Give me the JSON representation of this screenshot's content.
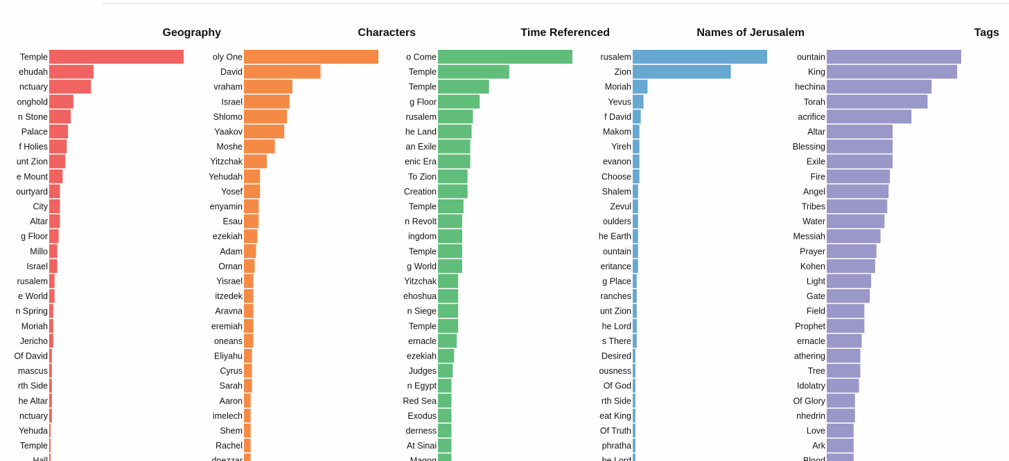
{
  "chart_data": [
    {
      "type": "bar",
      "orientation": "horizontal",
      "title": "Geography",
      "color": "#f06360",
      "categories": [
        "Temple",
        "ehudah",
        "nctuary",
        "onghold",
        "n Stone",
        "Palace",
        "f Holies",
        "unt Zion",
        "e Mount",
        "ourtyard",
        "City",
        "Altar",
        "g Floor",
        "Millo",
        "Israel",
        "rusalem",
        "e World",
        "n Spring",
        "Moriah",
        "Jericho",
        "Of David",
        "mascus",
        "rth Side",
        "he Altar",
        "nctuary",
        "Yehuda",
        "Temple",
        "Hall"
      ],
      "values": [
        100,
        33,
        31,
        18,
        16,
        14,
        13,
        12,
        10,
        8,
        8,
        8,
        7,
        6,
        6,
        4,
        4,
        3,
        3,
        3,
        2,
        2,
        2,
        2,
        2,
        1,
        1,
        1
      ]
    },
    {
      "type": "bar",
      "orientation": "horizontal",
      "title": "Characters",
      "color": "#f48a45",
      "categories": [
        "oly One",
        "David",
        "vraham",
        "Israel",
        "Shlomo",
        "Yaakov",
        "Moshe",
        "Yitzchak",
        "Yehudah",
        "Yosef",
        "enyamin",
        "Esau",
        "ezekiah",
        "Adam",
        "Ornan",
        "Yisrael",
        "itzedek",
        "Aravna",
        "eremiah",
        "oneans",
        "Eliyahu",
        "Cyrus",
        "Sarah",
        "Aaron",
        "imelech",
        "Shem",
        "Rachel",
        "dnezzar"
      ],
      "values": [
        100,
        57,
        36,
        34,
        32,
        30,
        23,
        17,
        12,
        12,
        11,
        11,
        10,
        9,
        8,
        7,
        7,
        7,
        7,
        7,
        6,
        6,
        6,
        5,
        5,
        5,
        5,
        5
      ]
    },
    {
      "type": "bar",
      "orientation": "horizontal",
      "title": "Time Referenced",
      "color": "#61bd7a",
      "categories": [
        "o Come",
        "Temple",
        "Temple",
        "g Floor",
        "rusalem",
        "he Land",
        "an Exile",
        "enic Era",
        "To Zion",
        "Creation",
        "Temple",
        "n Revolt",
        "ingdom",
        "Temple",
        "g World",
        "Yitzchak",
        "ehoshua",
        "n Siege",
        "Temple",
        "ernacle",
        "ezekiah",
        "Judges",
        "n Egypt",
        "Red Sea",
        "Exodus",
        "derness",
        "At Sinai",
        "Magog"
      ],
      "values": [
        100,
        53,
        38,
        31,
        26,
        25,
        24,
        24,
        22,
        22,
        19,
        18,
        18,
        18,
        18,
        15,
        15,
        15,
        15,
        14,
        12,
        11,
        10,
        10,
        10,
        10,
        10,
        10
      ]
    },
    {
      "type": "bar",
      "orientation": "horizontal",
      "title": "Names of Jerusalem",
      "color": "#67a8d0",
      "categories": [
        "rusalem",
        "Zion",
        "Moriah",
        "Yevus",
        "f David",
        "Makom",
        "Yireh",
        "evanon",
        "Choose",
        "Shalem",
        "Zevul",
        "oulders",
        "he Earth",
        "ountain",
        "eritance",
        "g Place",
        "ranches",
        "unt Zion",
        "he Lord",
        "s There",
        "Desired",
        "ousness",
        "Of God",
        "rth Side",
        "eat King",
        "Of Truth",
        "phratha",
        "he Lord"
      ],
      "values": [
        100,
        73,
        11,
        8,
        6,
        5,
        5,
        5,
        5,
        4,
        4,
        4,
        4,
        4,
        4,
        3,
        3,
        3,
        3,
        3,
        2,
        2,
        2,
        2,
        2,
        2,
        2,
        2
      ]
    },
    {
      "type": "bar",
      "orientation": "horizontal",
      "title": "Tags",
      "color": "#9a97c9",
      "categories": [
        "ountain",
        "King",
        "hechina",
        "Torah",
        "acrifice",
        "Altar",
        "Blessing",
        "Exile",
        "Fire",
        "Angel",
        "Tribes",
        "Water",
        "Messiah",
        "Prayer",
        "Kohen",
        "Light",
        "Gate",
        "Field",
        "Prophet",
        "ernacle",
        "athering",
        "Tree",
        "Idolatry",
        "Of Glory",
        "nhedrin",
        "Love",
        "Ark",
        "Blood"
      ],
      "values": [
        100,
        97,
        78,
        75,
        63,
        49,
        49,
        49,
        47,
        46,
        45,
        43,
        40,
        37,
        36,
        33,
        32,
        28,
        28,
        26,
        25,
        25,
        24,
        21,
        21,
        20,
        20,
        20
      ]
    }
  ]
}
